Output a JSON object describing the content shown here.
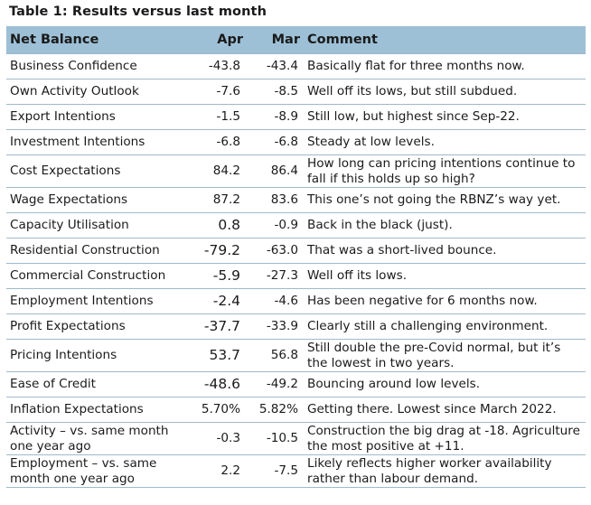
{
  "title": "Table 1: Results versus last month",
  "headers": {
    "name": "Net Balance",
    "apr": "Apr",
    "mar": "Mar",
    "comment": "Comment"
  },
  "rows": [
    {
      "name": "Business Confidence",
      "apr": "-43.8",
      "mar": "-43.4",
      "comment": "Basically flat for three months now."
    },
    {
      "name": "Own Activity Outlook",
      "apr": "-7.6",
      "mar": "-8.5",
      "comment": "Well off its lows, but still subdued."
    },
    {
      "name": "Export Intentions",
      "apr": "-1.5",
      "mar": "-8.9",
      "comment": "Still low, but highest since Sep-22."
    },
    {
      "name": "Investment Intentions",
      "apr": "-6.8",
      "mar": "-6.8",
      "comment": "Steady at low levels."
    },
    {
      "name": "Cost Expectations",
      "apr": "84.2",
      "mar": "86.4",
      "comment": "How long can pricing intentions continue to fall if this holds up so high?"
    },
    {
      "name": "Wage Expectations",
      "apr": "87.2",
      "mar": "83.6",
      "comment": "This one’s not going the RBNZ’s way yet."
    },
    {
      "name": "Capacity Utilisation",
      "apr": "0.8",
      "mar": "-0.9",
      "comment": "Back in the black (just)."
    },
    {
      "name": "Residential Construction",
      "apr": "-79.2",
      "mar": "-63.0",
      "comment": "That was a short-lived bounce."
    },
    {
      "name": "Commercial Construction",
      "apr": "-5.9",
      "mar": "-27.3",
      "comment": "Well off its lows."
    },
    {
      "name": "Employment Intentions",
      "apr": "-2.4",
      "mar": "-4.6",
      "comment": "Has been negative for 6 months now."
    },
    {
      "name": "Profit Expectations",
      "apr": "-37.7",
      "mar": "-33.9",
      "comment": "Clearly still a challenging environment."
    },
    {
      "name": "Pricing Intentions",
      "apr": "53.7",
      "mar": "56.8",
      "comment": "Still double the pre-Covid normal, but it’s the lowest in two years."
    },
    {
      "name": "Ease of Credit",
      "apr": "-48.6",
      "mar": "-49.2",
      "comment": "Bouncing around low levels."
    },
    {
      "name": "Inflation Expectations",
      "apr": "5.70%",
      "mar": "5.82%",
      "comment": "Getting there. Lowest since March 2022."
    },
    {
      "name": "Activity – vs. same month one year ago",
      "apr": "-0.3",
      "mar": "-10.5",
      "comment": "Construction the big drag at -18. Agriculture the most positive at +11."
    },
    {
      "name": "Employment – vs. same month one year ago",
      "apr": "2.2",
      "mar": "-7.5",
      "comment": "Likely reflects higher worker availability rather than labour demand."
    }
  ]
}
